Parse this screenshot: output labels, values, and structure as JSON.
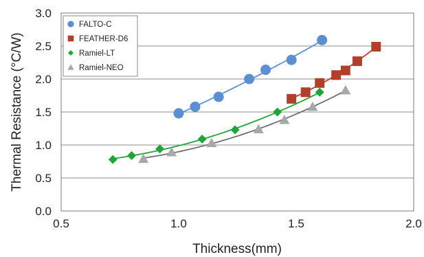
{
  "chart_data": {
    "type": "scatter",
    "xlabel": "Thickness(mm)",
    "ylabel": "Thermal Resistance (°C/W)",
    "xlim": [
      0.5,
      2.0
    ],
    "ylim": [
      0.0,
      3.0
    ],
    "xticks": [
      0.5,
      1.0,
      1.5,
      2.0
    ],
    "yticks": [
      0.0,
      0.5,
      1.0,
      1.5,
      2.0,
      2.5,
      3.0
    ],
    "x_tick_labels": [
      "0.5",
      "1.0",
      "1.5",
      "2.0"
    ],
    "y_tick_labels": [
      "0.0",
      "0.5",
      "1.0",
      "1.5",
      "2.0",
      "2.5",
      "3.0"
    ],
    "grid": "horizontal",
    "legend_position": "top-left",
    "series": [
      {
        "name": "FALTO-C",
        "marker": "circle",
        "color": "#5b8fd0",
        "line_color": "#5b8fd0",
        "x": [
          1.0,
          1.07,
          1.17,
          1.3,
          1.37,
          1.48,
          1.61
        ],
        "y": [
          1.48,
          1.58,
          1.73,
          2.0,
          2.14,
          2.29,
          2.59
        ]
      },
      {
        "name": "FEATHER-D6",
        "marker": "square",
        "color": "#b0402b",
        "line_color": "#b0402b",
        "x": [
          1.48,
          1.54,
          1.6,
          1.67,
          1.71,
          1.76,
          1.84
        ],
        "y": [
          1.7,
          1.8,
          1.94,
          2.06,
          2.13,
          2.27,
          2.49
        ]
      },
      {
        "name": "Ramiel-LT",
        "marker": "diamond",
        "color": "#22a33a",
        "line_color": "#22a33a",
        "x": [
          0.72,
          0.8,
          0.92,
          1.1,
          1.24,
          1.42,
          1.6
        ],
        "y": [
          0.78,
          0.84,
          0.94,
          1.09,
          1.23,
          1.5,
          1.8
        ]
      },
      {
        "name": "Ramiel-NEO",
        "marker": "triangle",
        "color": "#a8a8a8",
        "line_color": "#6e6e6e",
        "x": [
          0.85,
          0.97,
          1.14,
          1.34,
          1.45,
          1.57,
          1.71
        ],
        "y": [
          0.79,
          0.89,
          1.03,
          1.24,
          1.38,
          1.58,
          1.83
        ]
      }
    ]
  }
}
